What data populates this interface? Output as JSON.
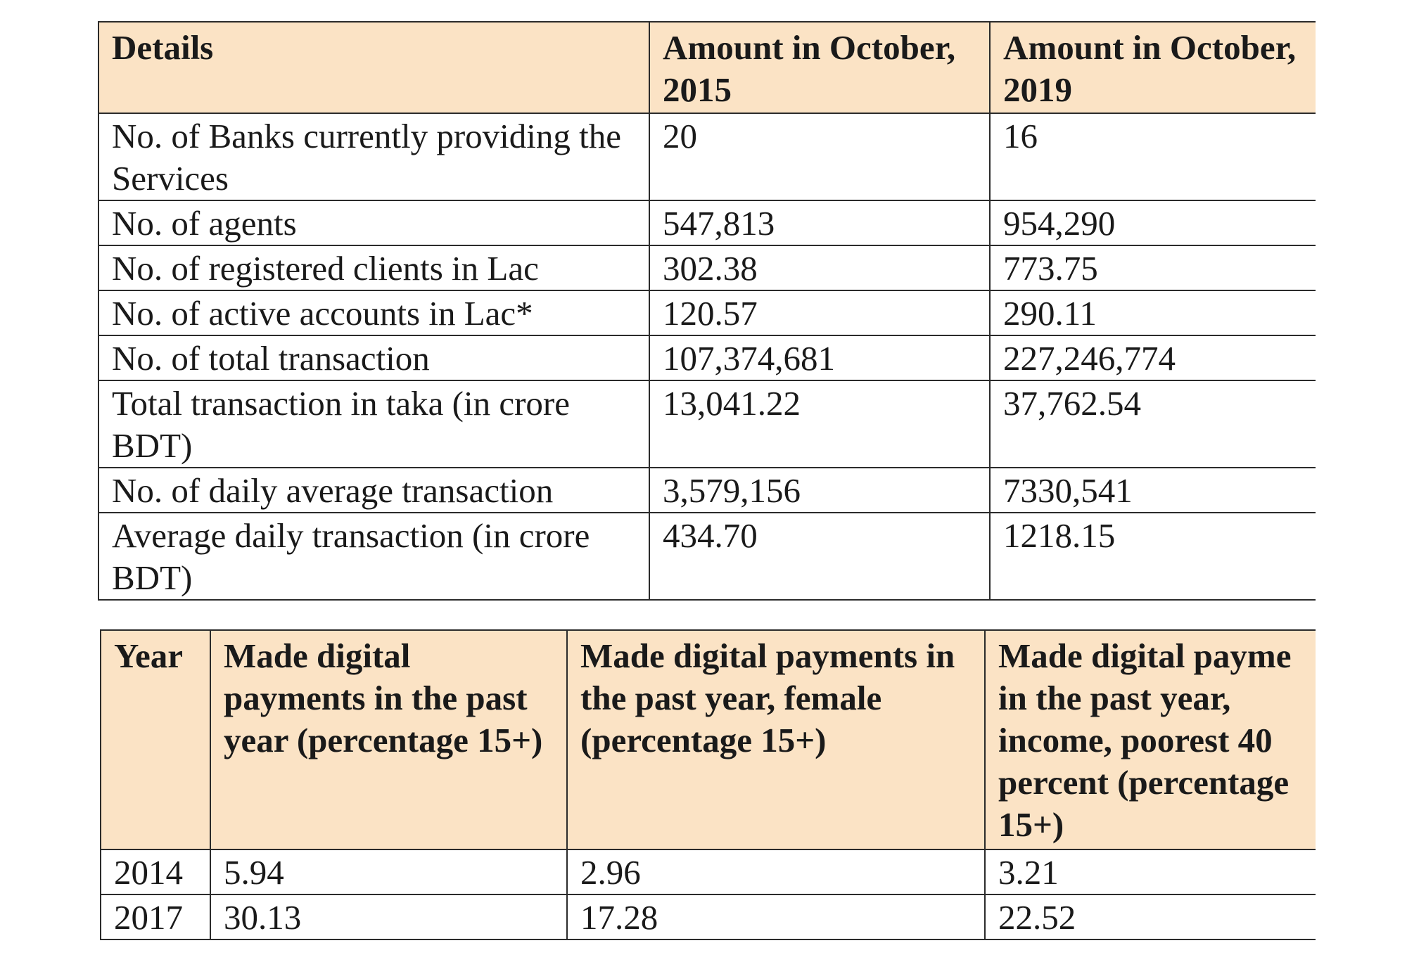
{
  "table1": {
    "headers": [
      "Details",
      "Amount in October, 2015",
      "Amount in October, 2019"
    ],
    "rows": [
      [
        "No. of Banks currently providing the Services",
        "20",
        "16"
      ],
      [
        "No. of agents",
        "547,813",
        "954,290"
      ],
      [
        "No. of registered clients in Lac",
        "302.38",
        "773.75"
      ],
      [
        "No. of active accounts in Lac*",
        "120.57",
        "290.11"
      ],
      [
        "No. of total transaction",
        "107,374,681",
        "227,246,774"
      ],
      [
        "Total transaction in taka (in crore BDT)",
        "13,041.22",
        "37,762.54"
      ],
      [
        "No. of daily average transaction",
        "3,579,156",
        "7330,541"
      ],
      [
        "Average daily transaction (in crore BDT)",
        "434.70",
        "1218.15"
      ]
    ]
  },
  "table2": {
    "headers": [
      "Year",
      "Made digital payments in the past year (percentage 15+)",
      "Made digital payments in the past year, female (percentage 15+)",
      "Made digital payme in the past year, income, poorest 40 percent (percentage 15+)"
    ],
    "rows": [
      [
        "2014",
        "5.94",
        "2.96",
        "3.21"
      ],
      [
        "2017",
        "30.13",
        "17.28",
        "22.52"
      ]
    ]
  }
}
